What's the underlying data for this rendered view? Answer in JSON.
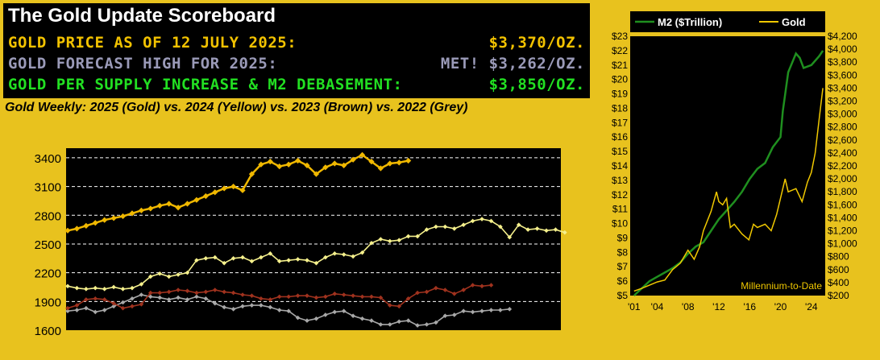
{
  "scoreboard": {
    "title": "The Gold Update Scoreboard",
    "rows": [
      {
        "label": "GOLD PRICE AS OF 12 JULY 2025:",
        "value": "$3,370/OZ.",
        "color": "#f2c200"
      },
      {
        "label": "GOLD FORECAST HIGH FOR 2025:",
        "value": "MET! $3,262/OZ.",
        "color": "#9a9ab8"
      },
      {
        "label": "GOLD PER SUPPLY INCREASE & M2 DEBASEMENT:",
        "value": "$3,850/OZ.",
        "color": "#22e022"
      }
    ]
  },
  "colors": {
    "panel_bg": "#e8c21e",
    "plot_bg": "#000000"
  },
  "chart_data": [
    {
      "type": "line",
      "title": "Gold Weekly:  2025 (Gold) vs. 2024 (Yellow) vs. 2023 (Brown) vs. 2022 (Grey)",
      "xlabel": "",
      "ylabel": "",
      "ylim": [
        1600,
        3500
      ],
      "yticks": [
        1600,
        1900,
        2200,
        2500,
        2800,
        3100,
        3400
      ],
      "grid": "horizontal dashed",
      "series": [
        {
          "name": "2025",
          "color": "#f0b800",
          "values": [
            2640,
            2660,
            2690,
            2720,
            2750,
            2770,
            2790,
            2820,
            2850,
            2870,
            2900,
            2920,
            2880,
            2920,
            2960,
            3000,
            3040,
            3080,
            3100,
            3060,
            3230,
            3330,
            3360,
            3310,
            3330,
            3370,
            3320,
            3230,
            3300,
            3340,
            3320,
            3380,
            3430,
            3360,
            3290,
            3340,
            3350,
            3370
          ]
        },
        {
          "name": "2024",
          "color": "#f5f08c",
          "values": [
            2060,
            2040,
            2030,
            2040,
            2030,
            2050,
            2030,
            2040,
            2080,
            2160,
            2190,
            2160,
            2180,
            2200,
            2330,
            2350,
            2360,
            2300,
            2350,
            2360,
            2320,
            2360,
            2400,
            2320,
            2330,
            2340,
            2330,
            2300,
            2360,
            2400,
            2390,
            2370,
            2410,
            2510,
            2550,
            2530,
            2540,
            2580,
            2580,
            2650,
            2680,
            2680,
            2660,
            2700,
            2740,
            2760,
            2740,
            2680,
            2570,
            2700,
            2650,
            2660,
            2640,
            2650,
            2620
          ]
        },
        {
          "name": "2023",
          "color": "#a0321e",
          "values": [
            1830,
            1860,
            1920,
            1930,
            1920,
            1880,
            1830,
            1850,
            1870,
            1990,
            1990,
            2000,
            2020,
            2010,
            1990,
            2000,
            2020,
            2000,
            1990,
            1970,
            1960,
            1930,
            1920,
            1950,
            1950,
            1960,
            1960,
            1940,
            1950,
            1980,
            1970,
            1960,
            1950,
            1950,
            1940,
            1860,
            1850,
            1930,
            1990,
            2000,
            2040,
            2020,
            1980,
            2020,
            2070,
            2060,
            2070
          ]
        },
        {
          "name": "2022",
          "color": "#a8a8a8",
          "values": [
            1800,
            1810,
            1830,
            1790,
            1810,
            1850,
            1890,
            1930,
            1970,
            1950,
            1940,
            1920,
            1940,
            1920,
            1950,
            1930,
            1880,
            1840,
            1820,
            1850,
            1860,
            1860,
            1840,
            1810,
            1800,
            1730,
            1700,
            1720,
            1760,
            1790,
            1800,
            1750,
            1720,
            1700,
            1660,
            1660,
            1690,
            1700,
            1650,
            1660,
            1680,
            1750,
            1760,
            1800,
            1790,
            1800,
            1810,
            1810,
            1820
          ]
        }
      ]
    },
    {
      "type": "line",
      "title": "",
      "annotation": "Millennium-to-Date",
      "x": [
        2001,
        2004,
        2008,
        2012,
        2016,
        2020,
        2024
      ],
      "xticklabels": [
        "'01",
        "'04",
        "'08",
        "'12",
        "'16",
        "'20",
        "'24"
      ],
      "xlim": [
        2000.5,
        2025.8
      ],
      "y_left": {
        "ylim": [
          5,
          23
        ],
        "ticklabels": [
          "$5",
          "$6",
          "$7",
          "$8",
          "$9",
          "$10",
          "$11",
          "$12",
          "$13",
          "$14",
          "$15",
          "$16",
          "$17",
          "$18",
          "$19",
          "$20",
          "$21",
          "$22",
          "$23"
        ]
      },
      "y_right": {
        "ylim": [
          200,
          4200
        ],
        "ticklabels": [
          "$200",
          "$400",
          "$600",
          "$800",
          "$1,000",
          "$1,200",
          "$1,400",
          "$1,600",
          "$1,800",
          "$2,000",
          "$2,200",
          "$2,400",
          "$2,600",
          "$2,800",
          "$3,000",
          "$3,200",
          "$3,400",
          "$3,600",
          "$3,800",
          "$4,000",
          "$4,200"
        ]
      },
      "legend": "top",
      "series": [
        {
          "name": "M2 ($Trillion)",
          "color": "#1f8f1f",
          "axis": "left",
          "x": [
            2001,
            2002,
            2003,
            2004,
            2005,
            2006,
            2007,
            2008,
            2009,
            2010,
            2011,
            2012,
            2013,
            2014,
            2015,
            2016,
            2017,
            2018,
            2019,
            2020,
            2020.3,
            2021,
            2022,
            2022.5,
            2023,
            2024,
            2025,
            2025.5
          ],
          "y": [
            5.0,
            5.5,
            6.0,
            6.3,
            6.6,
            6.9,
            7.3,
            7.9,
            8.4,
            8.7,
            9.5,
            10.3,
            10.9,
            11.5,
            12.2,
            13.1,
            13.8,
            14.2,
            15.3,
            16.0,
            17.8,
            20.5,
            21.8,
            21.5,
            20.8,
            21.0,
            21.6,
            22.0
          ]
        },
        {
          "name": "Gold",
          "color": "#f0c800",
          "axis": "right",
          "x": [
            2001,
            2002,
            2003,
            2004,
            2005,
            2006,
            2007,
            2008,
            2008.8,
            2009.5,
            2010,
            2011,
            2011.7,
            2012,
            2012.5,
            2013,
            2013.5,
            2014,
            2015,
            2015.9,
            2016.5,
            2017,
            2018,
            2018.8,
            2019.5,
            2020.6,
            2021,
            2022,
            2022.8,
            2023.5,
            2024,
            2024.5,
            2025,
            2025.5
          ],
          "y": [
            270,
            310,
            360,
            410,
            440,
            600,
            700,
            900,
            760,
            950,
            1200,
            1500,
            1800,
            1650,
            1600,
            1700,
            1250,
            1300,
            1150,
            1060,
            1300,
            1250,
            1300,
            1200,
            1450,
            2000,
            1800,
            1850,
            1650,
            1950,
            2100,
            2400,
            2900,
            3400
          ]
        }
      ]
    }
  ]
}
